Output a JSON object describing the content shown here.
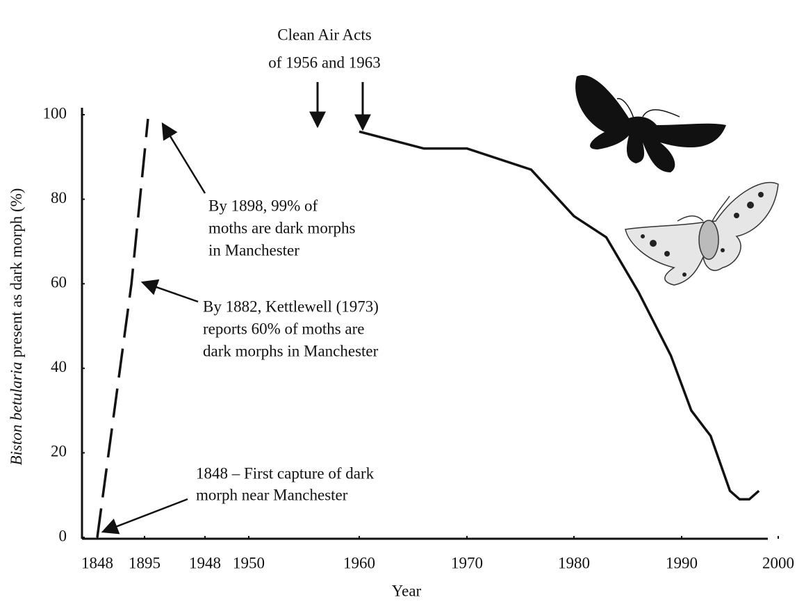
{
  "chart_data": {
    "type": "line",
    "xlabel": "Year",
    "ylabel": [
      "Biston betularia",
      "present as dark morph (%)"
    ],
    "xticks": [
      1848,
      1895,
      1948,
      1950,
      1960,
      1970,
      1980,
      1990,
      2000
    ],
    "ylim": [
      0,
      102
    ],
    "yticks": [
      0,
      20,
      40,
      60,
      80,
      100
    ],
    "series": [
      {
        "color": "#111111",
        "dashed": true,
        "x": [
          1848,
          1882,
          1898
        ],
        "values": [
          0,
          60,
          99
        ]
      },
      {
        "color": "#111111",
        "dashed": false,
        "x": [
          1960,
          1966,
          1970,
          1976,
          1980,
          1983,
          1986,
          1989,
          1991,
          1993,
          1995,
          1996,
          1997,
          1998
        ],
        "values": [
          96,
          92,
          92,
          87,
          76,
          71,
          58,
          43,
          30,
          24,
          11,
          9,
          9,
          11
        ]
      }
    ],
    "annotations": [
      {
        "lines": [
          "Clean  Air Acts",
          "of 1956 and 1963"
        ]
      },
      {
        "lines": [
          "By 1898, 99% of",
          "moths are dark morphs",
          "in Manchester"
        ]
      },
      {
        "lines": [
          "By 1882, Kettlewell (1973)",
          "reports 60% of moths are",
          "dark morphs in Manchester"
        ]
      },
      {
        "lines": [
          "1848 – First capture of dark",
          "morph near Manchester"
        ]
      }
    ]
  }
}
